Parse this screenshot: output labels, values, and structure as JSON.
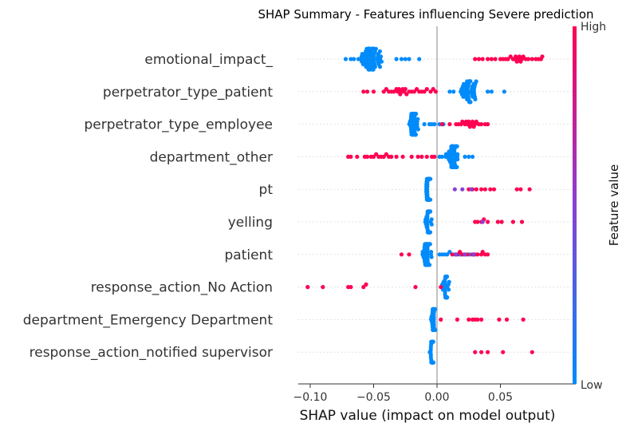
{
  "chart_data": {
    "type": "scatter",
    "title": "SHAP Summary - Features influencing Severe prediction",
    "xlabel": "SHAP value (impact on model output)",
    "xlim": [
      -0.11,
      0.087
    ],
    "xticks": [
      -0.1,
      -0.05,
      0.0,
      0.05
    ],
    "xtick_labels": [
      "−0.10",
      "−0.05",
      "0.00",
      "0.05"
    ],
    "colorbar": {
      "label": "Feature value",
      "high": "High",
      "low": "Low",
      "high_color": "#ff0052",
      "mid_color": "#8a3fd6",
      "low_color": "#008bfb"
    },
    "features": [
      {
        "name": "emotional_impact_",
        "low": {
          "center": -0.053,
          "spread": 0.009,
          "n": 70,
          "extra": [
            -0.072,
            -0.068,
            -0.032,
            -0.028,
            -0.025,
            -0.022,
            -0.014
          ]
        },
        "high": {
          "values": [
            0.03,
            0.033,
            0.036,
            0.04,
            0.043,
            0.046,
            0.05,
            0.052,
            0.054,
            0.056,
            0.058,
            0.06,
            0.061,
            0.062,
            0.063,
            0.064,
            0.065,
            0.066,
            0.067,
            0.068,
            0.07,
            0.072,
            0.075,
            0.078,
            0.08,
            0.082,
            0.083
          ]
        },
        "mid": {
          "values": []
        }
      },
      {
        "name": "perpetrator_type_patient",
        "low": {
          "center": 0.025,
          "spread": 0.008,
          "n": 45,
          "extra": [
            0.01,
            0.013,
            0.04,
            0.043,
            0.053
          ]
        },
        "high": {
          "values": [
            -0.058,
            -0.055,
            -0.05,
            -0.042,
            -0.04,
            -0.038,
            -0.036,
            -0.034,
            -0.032,
            -0.031,
            -0.03,
            -0.029,
            -0.028,
            -0.027,
            -0.026,
            -0.025,
            -0.024,
            -0.022,
            -0.02,
            -0.018,
            -0.016,
            -0.014,
            -0.012,
            -0.01,
            -0.008,
            -0.005,
            -0.003,
            -0.001
          ]
        },
        "mid": {
          "values": []
        }
      },
      {
        "name": "perpetrator_type_employee",
        "low": {
          "center": -0.018,
          "spread": 0.004,
          "n": 45,
          "extra": [
            -0.01,
            -0.006,
            -0.004,
            -0.002,
            0.002,
            0.005
          ]
        },
        "high": {
          "values": [
            0.004,
            0.01,
            0.015,
            0.017,
            0.019,
            0.02,
            0.022,
            0.023,
            0.024,
            0.025,
            0.026,
            0.027,
            0.028,
            0.029,
            0.03,
            0.031,
            0.033,
            0.035,
            0.038,
            0.04
          ]
        },
        "mid": {
          "values": []
        }
      },
      {
        "name": "department_other",
        "low": {
          "center": 0.012,
          "spread": 0.006,
          "n": 55,
          "extra": [
            0.002,
            0.004,
            0.022,
            0.025,
            0.028
          ]
        },
        "high": {
          "values": [
            -0.07,
            -0.068,
            -0.063,
            -0.057,
            -0.055,
            -0.052,
            -0.05,
            -0.048,
            -0.046,
            -0.044,
            -0.042,
            -0.04,
            -0.038,
            -0.036,
            -0.032,
            -0.027,
            -0.02,
            -0.015,
            -0.012,
            -0.008,
            -0.004,
            -0.002
          ]
        },
        "mid": {
          "values": []
        }
      },
      {
        "name": "pt",
        "low": {
          "center": -0.007,
          "spread": 0.002,
          "n": 45,
          "extra": []
        },
        "high": {
          "values": [
            0.025,
            0.028,
            0.031,
            0.035,
            0.038,
            0.042,
            0.045,
            0.063,
            0.066,
            0.073
          ]
        },
        "mid": {
          "values": [
            0.014,
            0.02,
            0.027
          ]
        }
      },
      {
        "name": "yelling",
        "low": {
          "center": -0.007,
          "spread": 0.003,
          "n": 50,
          "extra": []
        },
        "high": {
          "values": [
            0.03,
            0.032,
            0.035,
            0.037,
            0.04,
            0.048,
            0.051,
            0.06,
            0.067
          ]
        },
        "mid": {
          "values": [
            0.036
          ]
        }
      },
      {
        "name": "patient",
        "low": {
          "center": -0.008,
          "spread": 0.004,
          "n": 45,
          "extra": [
            0.002,
            0.004,
            0.006,
            0.008,
            0.01,
            0.014,
            0.018,
            0.02,
            0.022,
            0.026
          ]
        },
        "high": {
          "values": [
            -0.028,
            -0.022,
            0.012,
            0.016,
            0.018,
            0.02,
            0.024,
            0.028,
            0.03,
            0.032,
            0.035,
            0.036,
            0.038,
            0.04
          ]
        },
        "mid": {
          "values": [
            0.015,
            0.022,
            0.029
          ]
        }
      },
      {
        "name": "response_action_No Action",
        "low": {
          "center": 0.007,
          "spread": 0.003,
          "n": 35,
          "extra": []
        },
        "high": {
          "values": [
            -0.102,
            -0.09,
            -0.07,
            -0.068,
            -0.058,
            -0.056,
            -0.017,
            0.003
          ]
        },
        "mid": {
          "values": []
        }
      },
      {
        "name": "department_Emergency Department",
        "low": {
          "center": -0.003,
          "spread": 0.002,
          "n": 30,
          "extra": []
        },
        "high": {
          "values": [
            0.003,
            0.016,
            0.025,
            0.028,
            0.03,
            0.032,
            0.035,
            0.049,
            0.055,
            0.068
          ]
        },
        "mid": {
          "values": []
        }
      },
      {
        "name": "response_action_notified supervisor",
        "low": {
          "center": -0.004,
          "spread": 0.002,
          "n": 30,
          "extra": []
        },
        "high": {
          "values": [
            0.03,
            0.035,
            0.04,
            0.052,
            0.075
          ]
        },
        "mid": {
          "values": []
        }
      }
    ]
  }
}
